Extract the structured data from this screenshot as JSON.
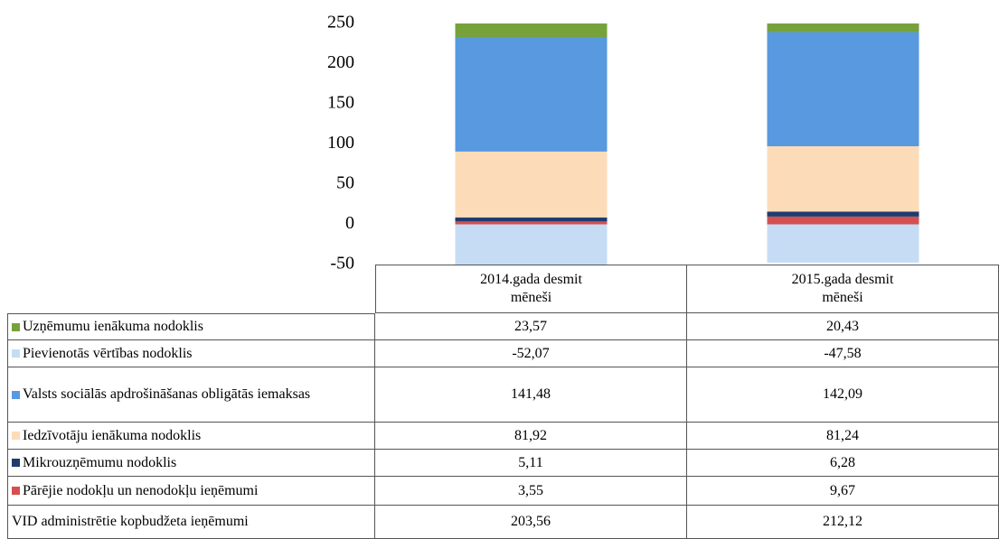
{
  "chart_data": {
    "type": "stacked_bar",
    "categories": [
      "2014.gada desmit mēneši",
      "2015.gada desmit mēneši"
    ],
    "series": [
      {
        "name": "Uzņēmumu ienākuma nodoklis",
        "color": "#77a23b",
        "values": [
          23.57,
          20.43
        ],
        "value_labels": [
          "23,57",
          "20,43"
        ]
      },
      {
        "name": "Pievienotās vērtības nodoklis",
        "color": "#c6dcf5",
        "values": [
          -52.07,
          -47.58
        ],
        "value_labels": [
          "-52,07",
          "-47,58"
        ]
      },
      {
        "name": "Valsts sociālās apdrošināšanas obligātās iemaksas",
        "color": "#5899e0",
        "values": [
          141.48,
          142.09
        ],
        "value_labels": [
          "141,48",
          "142,09"
        ]
      },
      {
        "name": "Iedzīvotāju ienākuma nodoklis",
        "color": "#fcdcb8",
        "values": [
          81.92,
          81.24
        ],
        "value_labels": [
          "81,92",
          "81,24"
        ]
      },
      {
        "name": "Mikrouzņēmumu nodoklis",
        "color": "#1f3c6e",
        "values": [
          5.11,
          6.28
        ],
        "value_labels": [
          "5,11",
          "6,28"
        ]
      },
      {
        "name": "Pārējie nodokļu un nenodokļu ieņēmumi",
        "color": "#d45050",
        "values": [
          3.55,
          9.67
        ],
        "value_labels": [
          "3,55",
          "9,67"
        ]
      }
    ],
    "total": {
      "name": "VID administrētie kopbudžeta ieņēmumi",
      "values": [
        203.56,
        212.12
      ],
      "value_labels": [
        "203,56",
        "212,12"
      ]
    },
    "ylim": [
      -50,
      250
    ],
    "yticks": [
      -50,
      0,
      50,
      100,
      150,
      200,
      250
    ]
  }
}
